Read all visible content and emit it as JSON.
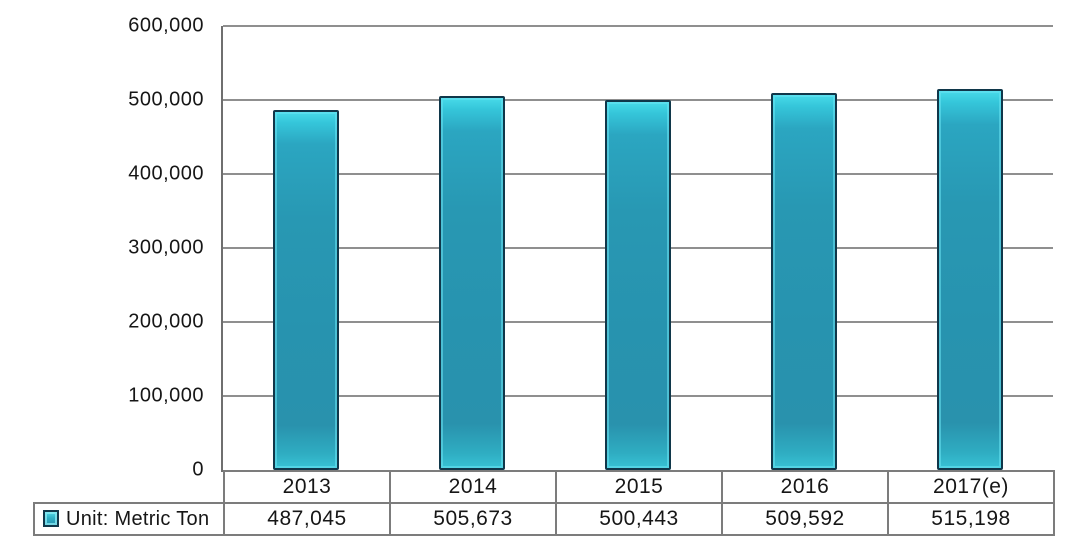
{
  "chart_data": {
    "type": "bar",
    "title": "",
    "categories": [
      "2013",
      "2014",
      "2015",
      "2016",
      "2017(e)"
    ],
    "values": [
      487045,
      505673,
      500443,
      509592,
      515198
    ],
    "value_labels": [
      "487,045",
      "505,673",
      "500,443",
      "509,592",
      "515,198"
    ],
    "xlabel": "",
    "ylabel": "",
    "ylim": [
      0,
      600000
    ],
    "ytick_step": 100000,
    "ytick_labels": [
      "0",
      "100,000",
      "200,000",
      "300,000",
      "400,000",
      "500,000",
      "600,000"
    ],
    "grid": "horizontal",
    "legend": {
      "label": "Unit: Metric Ton",
      "position": "bottom-left",
      "swatch_icon": "bar-swatch-icon"
    },
    "colors": {
      "bar_body": "#2793AF",
      "bar_highlight": "#48DBE9",
      "bar_border": "#10374A",
      "gridline": "#8F8F8F",
      "axis_line": "#6F6F6F",
      "table_border": "#7C7C7C",
      "text": "#161616",
      "background": "#FFFFFF"
    }
  }
}
